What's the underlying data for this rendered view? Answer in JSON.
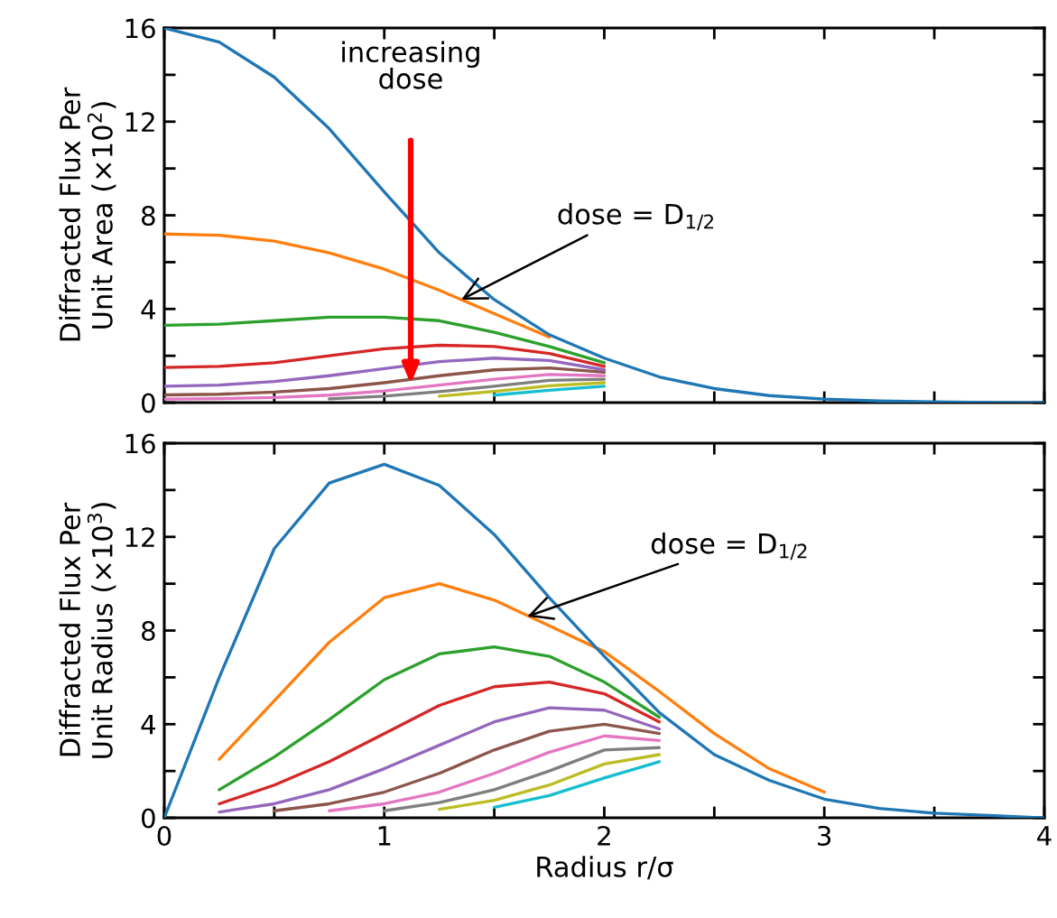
{
  "chart_data": [
    {
      "type": "line",
      "ylabel": "Diffracted Flux Per\nUnit Area (×10$^{2}$)",
      "tick_labels": "y",
      "grid": false,
      "legend": false,
      "marker": "none",
      "line_style": "solid",
      "x": [
        0,
        0.25,
        0.5,
        0.75,
        1,
        1.25,
        1.5,
        1.75,
        2,
        2.25,
        2.5,
        2.75,
        3,
        3.25,
        3.5,
        3.75,
        4
      ],
      "xlim": [
        0,
        4
      ],
      "xticks": [
        0,
        {
          "value": 0.5,
          "label": null
        },
        1,
        {
          "value": 1.5,
          "label": null
        },
        2,
        {
          "value": 2.5,
          "label": null
        },
        3,
        {
          "value": 3.5,
          "label": null
        },
        4
      ],
      "ylim": [
        0,
        16
      ],
      "yticks": [
        0,
        {
          "value": 2,
          "label": null
        },
        4,
        {
          "value": 6,
          "label": null
        },
        8,
        {
          "value": 10,
          "label": null
        },
        12,
        {
          "value": 14,
          "label": null
        },
        16
      ],
      "annotations": [
        "increasing\ndose",
        {
          "text": "dose = D$_{1/2}$",
          "x": 1.35,
          "y": 4.4
        }
      ],
      "series": [
        {
          "color": "#1f77b4",
          "values": [
            16,
            15.4,
            13.9,
            11.7,
            9.0,
            6.4,
            4.4,
            2.9,
            1.9,
            1.1,
            0.6,
            0.3,
            0.15,
            0.07,
            0.03,
            0.01,
            0
          ]
        },
        {
          "color": "#ff7f0e",
          "values": [
            7.2,
            7.15,
            6.9,
            6.4,
            5.7,
            4.8,
            3.8,
            2.8,
            null,
            null,
            null,
            null,
            null,
            null,
            null,
            null,
            null
          ]
        },
        {
          "color": "#2ca02c",
          "values": [
            3.3,
            3.35,
            3.5,
            3.65,
            3.65,
            3.5,
            3.0,
            2.4,
            1.7,
            null,
            null,
            null,
            null,
            null,
            null,
            null,
            null
          ]
        },
        {
          "color": "#d62728",
          "values": [
            1.5,
            1.55,
            1.7,
            2.0,
            2.3,
            2.45,
            2.4,
            2.1,
            1.55,
            null,
            null,
            null,
            null,
            null,
            null,
            null,
            null
          ]
        },
        {
          "color": "#9467bd",
          "values": [
            0.7,
            0.75,
            0.9,
            1.15,
            1.45,
            1.75,
            1.9,
            1.8,
            1.4,
            null,
            null,
            null,
            null,
            null,
            null,
            null,
            null
          ]
        },
        {
          "color": "#8c564b",
          "values": [
            0.33,
            0.36,
            0.45,
            0.6,
            0.85,
            1.15,
            1.4,
            1.48,
            1.3,
            null,
            null,
            null,
            null,
            null,
            null,
            null,
            null
          ]
        },
        {
          "color": "#e377c2",
          "values": [
            0.15,
            0.17,
            0.22,
            0.32,
            0.5,
            0.75,
            1.0,
            1.2,
            1.15,
            null,
            null,
            null,
            null,
            null,
            null,
            null,
            null
          ]
        },
        {
          "color": "#7f7f7f",
          "values": [
            null,
            null,
            null,
            0.16,
            0.28,
            0.47,
            0.7,
            0.95,
            1.0,
            null,
            null,
            null,
            null,
            null,
            null,
            null,
            null
          ]
        },
        {
          "color": "#bcbd22",
          "values": [
            null,
            null,
            null,
            null,
            null,
            0.28,
            0.48,
            0.72,
            0.85,
            null,
            null,
            null,
            null,
            null,
            null,
            null,
            null
          ]
        },
        {
          "color": "#17becf",
          "values": [
            null,
            null,
            null,
            null,
            null,
            null,
            0.32,
            0.53,
            0.7,
            null,
            null,
            null,
            null,
            null,
            null,
            null,
            null
          ]
        }
      ]
    },
    {
      "type": "line",
      "xlabel": "Radius r/σ",
      "ylabel": "Diffracted Flux Per\nUnit Radius (×10$^{3}$)",
      "grid": false,
      "legend": false,
      "marker": "none",
      "line_style": "solid",
      "x": [
        0,
        0.25,
        0.5,
        0.75,
        1,
        1.25,
        1.5,
        1.75,
        2,
        2.25,
        2.5,
        2.75,
        3,
        3.25,
        3.5,
        3.75,
        4
      ],
      "xlim": [
        0,
        4
      ],
      "xticks": [
        0,
        {
          "value": 0.5,
          "label": null
        },
        1,
        {
          "value": 1.5,
          "label": null
        },
        2,
        {
          "value": 2.5,
          "label": null
        },
        3,
        {
          "value": 3.5,
          "label": null
        },
        4
      ],
      "ylim": [
        0,
        16
      ],
      "yticks": [
        0,
        {
          "value": 2,
          "label": null
        },
        4,
        {
          "value": 6,
          "label": null
        },
        8,
        {
          "value": 10,
          "label": null
        },
        12,
        {
          "value": 14,
          "label": null
        },
        16
      ],
      "annotations": [
        {
          "text": "dose = D$_{1/2}$",
          "x": 1.65,
          "y": 8.6
        }
      ],
      "series": [
        {
          "color": "#1f77b4",
          "values": [
            0,
            6.0,
            11.5,
            14.3,
            15.1,
            14.2,
            12.1,
            9.4,
            6.9,
            4.5,
            2.7,
            1.6,
            0.8,
            0.4,
            0.2,
            0.1,
            0
          ]
        },
        {
          "color": "#ff7f0e",
          "values": [
            null,
            2.5,
            5.0,
            7.5,
            9.4,
            10.0,
            9.3,
            8.2,
            7.1,
            5.4,
            3.6,
            2.1,
            1.1,
            null,
            null,
            null,
            null
          ]
        },
        {
          "color": "#2ca02c",
          "values": [
            null,
            1.2,
            2.6,
            4.2,
            5.9,
            7.0,
            7.3,
            6.9,
            5.8,
            4.3,
            null,
            null,
            null,
            null,
            null,
            null,
            null
          ]
        },
        {
          "color": "#d62728",
          "values": [
            null,
            0.6,
            1.4,
            2.4,
            3.6,
            4.8,
            5.6,
            5.8,
            5.3,
            4.1,
            null,
            null,
            null,
            null,
            null,
            null,
            null
          ]
        },
        {
          "color": "#9467bd",
          "values": [
            null,
            0.25,
            0.6,
            1.2,
            2.1,
            3.1,
            4.1,
            4.7,
            4.6,
            3.8,
            null,
            null,
            null,
            null,
            null,
            null,
            null
          ]
        },
        {
          "color": "#8c564b",
          "values": [
            null,
            null,
            0.3,
            0.6,
            1.1,
            1.9,
            2.9,
            3.7,
            4.0,
            3.6,
            null,
            null,
            null,
            null,
            null,
            null,
            null
          ]
        },
        {
          "color": "#e377c2",
          "values": [
            null,
            null,
            null,
            0.3,
            0.6,
            1.1,
            1.9,
            2.8,
            3.5,
            3.3,
            null,
            null,
            null,
            null,
            null,
            null,
            null
          ]
        },
        {
          "color": "#7f7f7f",
          "values": [
            null,
            null,
            null,
            null,
            0.3,
            0.65,
            1.2,
            2.0,
            2.9,
            3.0,
            null,
            null,
            null,
            null,
            null,
            null,
            null
          ]
        },
        {
          "color": "#bcbd22",
          "values": [
            null,
            null,
            null,
            null,
            null,
            0.36,
            0.75,
            1.4,
            2.3,
            2.7,
            null,
            null,
            null,
            null,
            null,
            null,
            null
          ]
        },
        {
          "color": "#17becf",
          "values": [
            null,
            null,
            null,
            null,
            null,
            null,
            0.45,
            0.95,
            1.7,
            2.4,
            null,
            null,
            null,
            null,
            null,
            null,
            null
          ]
        }
      ]
    }
  ]
}
